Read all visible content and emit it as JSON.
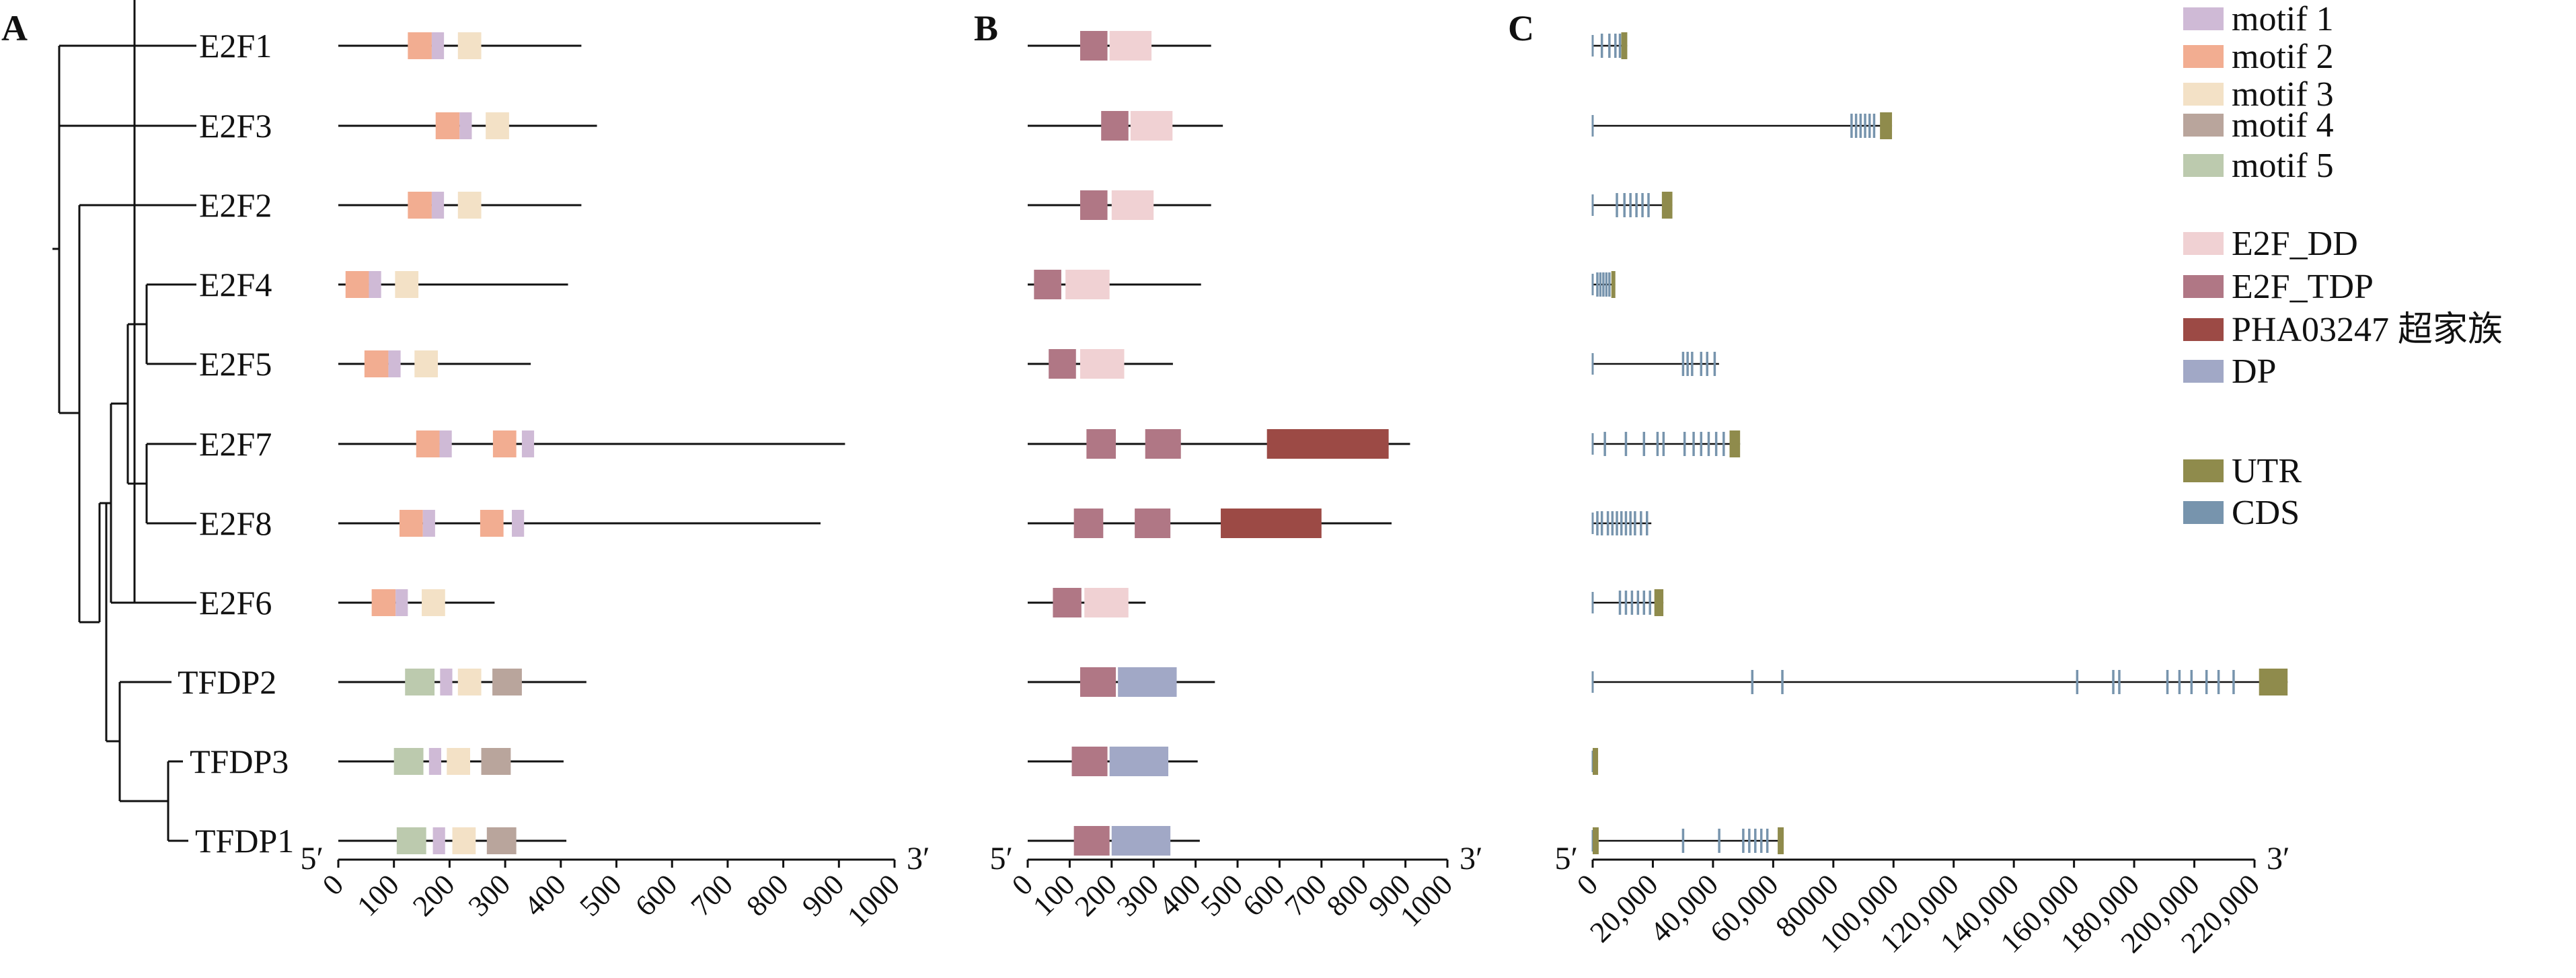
{
  "panels": {
    "a": "A",
    "b": "B",
    "c": "C"
  },
  "ends": {
    "five": "5′",
    "three": "3′"
  },
  "genes": [
    "E2F1",
    "E2F3",
    "E2F2",
    "E2F4",
    "E2F5",
    "E2F7",
    "E2F8",
    "E2F6",
    "TFDP2",
    "TFDP3",
    "TFDP1"
  ],
  "legend": {
    "motifs": [
      {
        "key": "motif 1",
        "label": "motif 1",
        "color": "#cfbad6"
      },
      {
        "key": "motif 2",
        "label": "motif 2",
        "color": "#f2ad91"
      },
      {
        "key": "motif 3",
        "label": "motif 3",
        "color": "#f3e1c6"
      },
      {
        "key": "motif 4",
        "label": "motif 4",
        "color": "#b9a59c"
      },
      {
        "key": "motif 5",
        "label": "motif 5",
        "color": "#bccaae"
      }
    ],
    "domains": [
      {
        "key": "E2F_DD",
        "label": "E2F_DD",
        "color": "#f0d1d3"
      },
      {
        "key": "E2F_TDP",
        "label": "E2F_TDP",
        "color": "#b07785"
      },
      {
        "key": "PHA03247",
        "label": "PHA03247 超家族",
        "color": "#9c4a45"
      },
      {
        "key": "DP",
        "label": "DP",
        "color": "#a1a8c6"
      }
    ],
    "structure": [
      {
        "key": "UTR",
        "label": "UTR",
        "color": "#8f8b4c"
      },
      {
        "key": "CDS",
        "label": "CDS",
        "color": "#7794ad"
      }
    ]
  },
  "chart_data": [
    {
      "type": "diagram",
      "panel": "A",
      "axis": {
        "range": [
          0,
          1000
        ],
        "ticks": [
          "0",
          "100",
          "200",
          "300",
          "400",
          "500",
          "600",
          "700",
          "800",
          "900",
          "1000"
        ]
      },
      "proteins": [
        {
          "gene": "E2F1",
          "length": 437,
          "motifs": [
            {
              "m": "motif 2",
              "s": 125,
              "e": 168
            },
            {
              "m": "motif 1",
              "s": 168,
              "e": 190
            },
            {
              "m": "motif 3",
              "s": 215,
              "e": 257
            }
          ]
        },
        {
          "gene": "E2F3",
          "length": 465,
          "motifs": [
            {
              "m": "motif 2",
              "s": 175,
              "e": 218
            },
            {
              "m": "motif 1",
              "s": 218,
              "e": 240
            },
            {
              "m": "motif 3",
              "s": 265,
              "e": 307
            }
          ]
        },
        {
          "gene": "E2F2",
          "length": 437,
          "motifs": [
            {
              "m": "motif 2",
              "s": 125,
              "e": 168
            },
            {
              "m": "motif 1",
              "s": 168,
              "e": 190
            },
            {
              "m": "motif 3",
              "s": 215,
              "e": 257
            }
          ]
        },
        {
          "gene": "E2F4",
          "length": 413,
          "motifs": [
            {
              "m": "motif 2",
              "s": 13,
              "e": 55
            },
            {
              "m": "motif 1",
              "s": 55,
              "e": 77
            },
            {
              "m": "motif 3",
              "s": 102,
              "e": 144
            }
          ]
        },
        {
          "gene": "E2F5",
          "length": 346,
          "motifs": [
            {
              "m": "motif 2",
              "s": 47,
              "e": 90
            },
            {
              "m": "motif 1",
              "s": 90,
              "e": 112
            },
            {
              "m": "motif 3",
              "s": 137,
              "e": 179
            }
          ]
        },
        {
          "gene": "E2F7",
          "length": 911,
          "motifs": [
            {
              "m": "motif 2",
              "s": 140,
              "e": 182
            },
            {
              "m": "motif 1",
              "s": 182,
              "e": 204
            },
            {
              "m": "motif 2",
              "s": 278,
              "e": 320
            },
            {
              "m": "motif 1",
              "s": 330,
              "e": 352
            }
          ]
        },
        {
          "gene": "E2F8",
          "length": 867,
          "motifs": [
            {
              "m": "motif 2",
              "s": 110,
              "e": 152
            },
            {
              "m": "motif 1",
              "s": 152,
              "e": 174
            },
            {
              "m": "motif 2",
              "s": 255,
              "e": 297
            },
            {
              "m": "motif 1",
              "s": 312,
              "e": 334
            }
          ]
        },
        {
          "gene": "E2F6",
          "length": 281,
          "motifs": [
            {
              "m": "motif 2",
              "s": 60,
              "e": 103
            },
            {
              "m": "motif 1",
              "s": 103,
              "e": 125
            },
            {
              "m": "motif 3",
              "s": 150,
              "e": 192
            }
          ]
        },
        {
          "gene": "TFDP2",
          "length": 446,
          "motifs": [
            {
              "m": "motif 5",
              "s": 120,
              "e": 173
            },
            {
              "m": "motif 1",
              "s": 183,
              "e": 205
            },
            {
              "m": "motif 3",
              "s": 215,
              "e": 257
            },
            {
              "m": "motif 4",
              "s": 277,
              "e": 330
            }
          ]
        },
        {
          "gene": "TFDP3",
          "length": 405,
          "motifs": [
            {
              "m": "motif 5",
              "s": 100,
              "e": 153
            },
            {
              "m": "motif 1",
              "s": 163,
              "e": 185
            },
            {
              "m": "motif 3",
              "s": 195,
              "e": 237
            },
            {
              "m": "motif 4",
              "s": 257,
              "e": 310
            }
          ]
        },
        {
          "gene": "TFDP1",
          "length": 410,
          "motifs": [
            {
              "m": "motif 5",
              "s": 105,
              "e": 158
            },
            {
              "m": "motif 1",
              "s": 170,
              "e": 192
            },
            {
              "m": "motif 3",
              "s": 205,
              "e": 247
            },
            {
              "m": "motif 4",
              "s": 267,
              "e": 320
            }
          ]
        }
      ]
    },
    {
      "type": "diagram",
      "panel": "B",
      "axis": {
        "range": [
          0,
          1000
        ],
        "ticks": [
          "0",
          "100",
          "200",
          "300",
          "400",
          "500",
          "600",
          "700",
          "800",
          "900",
          "1000"
        ]
      },
      "proteins": [
        {
          "gene": "E2F1",
          "length": 437,
          "domains": [
            {
              "d": "E2F_TDP",
              "s": 125,
              "e": 190
            },
            {
              "d": "E2F_DD",
              "s": 195,
              "e": 295
            }
          ]
        },
        {
          "gene": "E2F3",
          "length": 465,
          "domains": [
            {
              "d": "E2F_TDP",
              "s": 175,
              "e": 240
            },
            {
              "d": "E2F_DD",
              "s": 245,
              "e": 345
            }
          ]
        },
        {
          "gene": "E2F2",
          "length": 437,
          "domains": [
            {
              "d": "E2F_TDP",
              "s": 125,
              "e": 190
            },
            {
              "d": "E2F_DD",
              "s": 200,
              "e": 300
            }
          ]
        },
        {
          "gene": "E2F4",
          "length": 413,
          "domains": [
            {
              "d": "E2F_TDP",
              "s": 15,
              "e": 80
            },
            {
              "d": "E2F_DD",
              "s": 90,
              "e": 195
            }
          ]
        },
        {
          "gene": "E2F5",
          "length": 346,
          "domains": [
            {
              "d": "E2F_TDP",
              "s": 50,
              "e": 115
            },
            {
              "d": "E2F_DD",
              "s": 125,
              "e": 230
            }
          ]
        },
        {
          "gene": "E2F7",
          "length": 911,
          "domains": [
            {
              "d": "E2F_TDP",
              "s": 140,
              "e": 210
            },
            {
              "d": "E2F_TDP",
              "s": 280,
              "e": 365
            },
            {
              "d": "PHA03247",
              "s": 570,
              "e": 860
            }
          ]
        },
        {
          "gene": "E2F8",
          "length": 867,
          "domains": [
            {
              "d": "E2F_TDP",
              "s": 110,
              "e": 180
            },
            {
              "d": "E2F_TDP",
              "s": 255,
              "e": 340
            },
            {
              "d": "PHA03247",
              "s": 460,
              "e": 700
            }
          ]
        },
        {
          "gene": "E2F6",
          "length": 281,
          "domains": [
            {
              "d": "E2F_TDP",
              "s": 60,
              "e": 128
            },
            {
              "d": "E2F_DD",
              "s": 135,
              "e": 240
            }
          ]
        },
        {
          "gene": "TFDP2",
          "length": 446,
          "domains": [
            {
              "d": "E2F_TDP",
              "s": 125,
              "e": 210
            },
            {
              "d": "DP",
              "s": 215,
              "e": 355
            }
          ]
        },
        {
          "gene": "TFDP3",
          "length": 405,
          "domains": [
            {
              "d": "E2F_TDP",
              "s": 105,
              "e": 190
            },
            {
              "d": "DP",
              "s": 195,
              "e": 335
            }
          ]
        },
        {
          "gene": "TFDP1",
          "length": 410,
          "domains": [
            {
              "d": "E2F_TDP",
              "s": 110,
              "e": 195
            },
            {
              "d": "DP",
              "s": 200,
              "e": 340
            }
          ]
        }
      ]
    },
    {
      "type": "diagram",
      "panel": "C",
      "axis": {
        "range": [
          0,
          220000
        ],
        "ticks": [
          "0",
          "20,000",
          "40,000",
          "60,000",
          "80000",
          "100,000",
          "120,000",
          "140,000",
          "160,000",
          "180,000",
          "200,000",
          "220,000"
        ]
      },
      "genes": [
        {
          "gene": "E2F1",
          "length": 11500,
          "cds": [
            3000,
            5500,
            7500,
            9000
          ],
          "utr": [
            [
              9500,
              11500
            ]
          ]
        },
        {
          "gene": "E2F3",
          "length": 99500,
          "cds": [
            86000,
            87500,
            89000,
            90500,
            92000,
            93500
          ],
          "utr": [
            [
              95500,
              99500
            ]
          ]
        },
        {
          "gene": "E2F2",
          "length": 26500,
          "cds": [
            8000,
            10500,
            12500,
            14500,
            16500,
            18500
          ],
          "utr": [
            [
              23000,
              26500
            ]
          ]
        },
        {
          "gene": "E2F4",
          "length": 7500,
          "cds": [
            1500,
            2500,
            3500,
            4500,
            5500
          ],
          "utr": [
            [
              6200,
              7500
            ]
          ]
        },
        {
          "gene": "E2F5",
          "length": 42000,
          "cds": [
            30000,
            31500,
            33000,
            36000,
            38000,
            40500
          ],
          "utr": []
        },
        {
          "gene": "E2F7",
          "length": 49000,
          "cds": [
            4000,
            11000,
            17000,
            21500,
            23500,
            30500,
            33500,
            36000,
            38500,
            41000,
            43500
          ],
          "utr": [
            [
              45500,
              49000
            ]
          ]
        },
        {
          "gene": "E2F8",
          "length": 19500,
          "cds": [
            1500,
            3000,
            5000,
            6500,
            8000,
            9500,
            11000,
            12500,
            14000,
            16000,
            18000
          ],
          "utr": []
        },
        {
          "gene": "E2F6",
          "length": 23500,
          "cds": [
            9000,
            11000,
            13000,
            15000,
            17000,
            19000
          ],
          "utr": [
            [
              20500,
              23500
            ]
          ]
        },
        {
          "gene": "TFDP2",
          "length": 231000,
          "cds": [
            53000,
            63000,
            161000,
            173000,
            175000,
            191000,
            195000,
            199000,
            204000,
            208000,
            213000
          ],
          "utr": [
            [
              221500,
              231000
            ]
          ]
        },
        {
          "gene": "TFDP3",
          "length": 1800,
          "cds": [],
          "utr": [
            [
              0,
              1800
            ]
          ]
        },
        {
          "gene": "TFDP1",
          "length": 63500,
          "cds": [
            30000,
            42000,
            50000,
            52000,
            54000,
            56000,
            58000
          ],
          "utr": [
            [
              0,
              2000
            ],
            [
              61500,
              63500
            ]
          ]
        }
      ]
    }
  ]
}
